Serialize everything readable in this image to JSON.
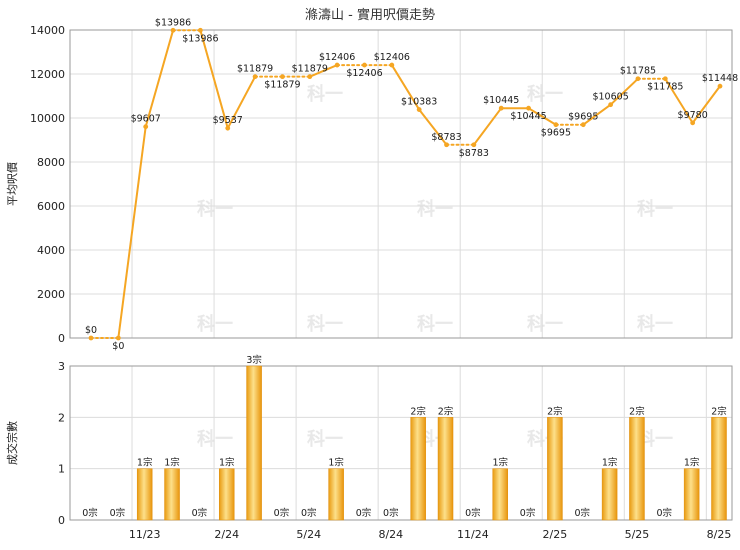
{
  "chart_data": [
    {
      "type": "line",
      "title": "滌濤山 - 實用呎價走勢",
      "ylabel": "平均呎價",
      "ylim": [
        0,
        14000
      ],
      "yticks": [
        "0",
        "2000",
        "4000",
        "6000",
        "8000",
        "10000",
        "12000",
        "14000"
      ],
      "grid": true,
      "color": "#f5a623",
      "points": [
        {
          "x": 0,
          "y": 0,
          "label": "$0",
          "solid": false
        },
        {
          "x": 1,
          "y": 0,
          "label": "$0",
          "solid": true
        },
        {
          "x": 2,
          "y": 9607,
          "label": "$9607",
          "solid": true
        },
        {
          "x": 3,
          "y": 13986,
          "label": "$13986",
          "solid": false
        },
        {
          "x": 4,
          "y": 13986,
          "label": "$13986",
          "solid": true
        },
        {
          "x": 5,
          "y": 9537,
          "label": "$9537",
          "solid": true
        },
        {
          "x": 6,
          "y": 11879,
          "label": "$11879",
          "solid": false
        },
        {
          "x": 7,
          "y": 11879,
          "label": "$11879",
          "solid": false
        },
        {
          "x": 8,
          "y": 11879,
          "label": "$11879",
          "solid": true
        },
        {
          "x": 9,
          "y": 12406,
          "label": "$12406",
          "solid": false
        },
        {
          "x": 10,
          "y": 12406,
          "label": "$12406",
          "solid": false
        },
        {
          "x": 11,
          "y": 12406,
          "label": "$12406",
          "solid": true
        },
        {
          "x": 12,
          "y": 10383,
          "label": "$10383",
          "solid": true
        },
        {
          "x": 13,
          "y": 8783,
          "label": "$8783",
          "solid": false
        },
        {
          "x": 14,
          "y": 8783,
          "label": "$8783",
          "solid": true
        },
        {
          "x": 15,
          "y": 10445,
          "label": "$10445",
          "solid": true
        },
        {
          "x": 16,
          "y": 10445,
          "label": "$10445",
          "solid": true
        },
        {
          "x": 17,
          "y": 9695,
          "label": "$9695",
          "solid": false
        },
        {
          "x": 18,
          "y": 9695,
          "label": "$9695",
          "solid": true
        },
        {
          "x": 19,
          "y": 10605,
          "label": "$10605",
          "solid": true
        },
        {
          "x": 20,
          "y": 11785,
          "label": "$11785",
          "solid": false
        },
        {
          "x": 21,
          "y": 11785,
          "label": "$11785",
          "solid": true
        },
        {
          "x": 22,
          "y": 9780,
          "label": "$9780",
          "solid": true
        },
        {
          "x": 23,
          "y": 11448,
          "label": "$11448",
          "solid": true
        }
      ],
      "label_positions": [
        "above",
        "below",
        "above",
        "above",
        "below",
        "above",
        "above",
        "below",
        "above",
        "above",
        "below",
        "above",
        "above",
        "above",
        "below",
        "above",
        "below",
        "below",
        "above",
        "above",
        "above",
        "below",
        "above",
        "above"
      ]
    },
    {
      "type": "bar",
      "ylabel": "成交宗數",
      "ylim": [
        0,
        3
      ],
      "yticks": [
        "0",
        "1",
        "2",
        "3"
      ],
      "grid": true,
      "x_tick_labels": [
        {
          "index": 2,
          "label": "11/23"
        },
        {
          "index": 5,
          "label": "2/24"
        },
        {
          "index": 8,
          "label": "5/24"
        },
        {
          "index": 11,
          "label": "8/24"
        },
        {
          "index": 14,
          "label": "11/24"
        },
        {
          "index": 17,
          "label": "2/25"
        },
        {
          "index": 20,
          "label": "5/25"
        },
        {
          "index": 23,
          "label": "8/25"
        }
      ],
      "values": [
        0,
        0,
        1,
        1,
        0,
        1,
        3,
        0,
        0,
        1,
        0,
        0,
        2,
        2,
        0,
        1,
        0,
        2,
        0,
        1,
        2,
        0,
        1,
        2
      ],
      "value_labels": [
        "0宗",
        "0宗",
        "1宗",
        "1宗",
        "0宗",
        "1宗",
        "3宗",
        "0宗",
        "0宗",
        "1宗",
        "0宗",
        "0宗",
        "2宗",
        "2宗",
        "0宗",
        "1宗",
        "0宗",
        "2宗",
        "0宗",
        "1宗",
        "2宗",
        "0宗",
        "1宗",
        "2宗"
      ]
    }
  ],
  "watermark": "科一"
}
